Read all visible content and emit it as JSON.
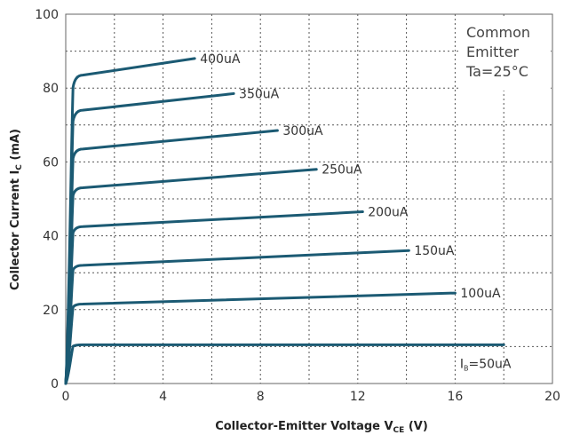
{
  "chart_data": {
    "type": "line",
    "xlabel": "Collector-Emitter Voltage V",
    "xlabel_sub": "CE",
    "xlabel_unit": " (V)",
    "ylabel": "Collector Current I",
    "ylabel_sub": "C",
    "ylabel_unit": " (mA)",
    "xlim": [
      0,
      20
    ],
    "ylim": [
      0,
      100
    ],
    "x_ticks": [
      0,
      4,
      8,
      12,
      16,
      20
    ],
    "y_ticks": [
      0,
      20,
      40,
      60,
      80,
      100
    ],
    "grid": "dotted",
    "annotation_lines": [
      "Common",
      "Emitter",
      "Ta=25°C"
    ],
    "line_color": "#1b5a73",
    "grid_color": "#555555",
    "series": [
      {
        "name": "400uA",
        "label_main": "400uA",
        "sat": 83.5,
        "end_x": 5.3,
        "end_y": 88
      },
      {
        "name": "350uA",
        "label_main": "350uA",
        "sat": 74,
        "end_x": 6.9,
        "end_y": 78.5
      },
      {
        "name": "300uA",
        "label_main": "300uA",
        "sat": 63.5,
        "end_x": 8.7,
        "end_y": 68.5
      },
      {
        "name": "250uA",
        "label_main": "250uA",
        "sat": 53,
        "end_x": 10.3,
        "end_y": 58
      },
      {
        "name": "200uA",
        "label_main": "200uA",
        "sat": 42.5,
        "end_x": 12.2,
        "end_y": 46.5
      },
      {
        "name": "150uA",
        "label_main": "150uA",
        "sat": 32,
        "end_x": 14.1,
        "end_y": 36
      },
      {
        "name": "100uA",
        "label_main": "100uA",
        "sat": 21.5,
        "end_x": 16,
        "end_y": 24.5
      },
      {
        "name": "IB=50uA",
        "label_prefix": "I",
        "label_sub": "B",
        "label_main": "=50uA",
        "sat": 10.5,
        "end_x": 18,
        "end_y": 10.5
      }
    ]
  }
}
